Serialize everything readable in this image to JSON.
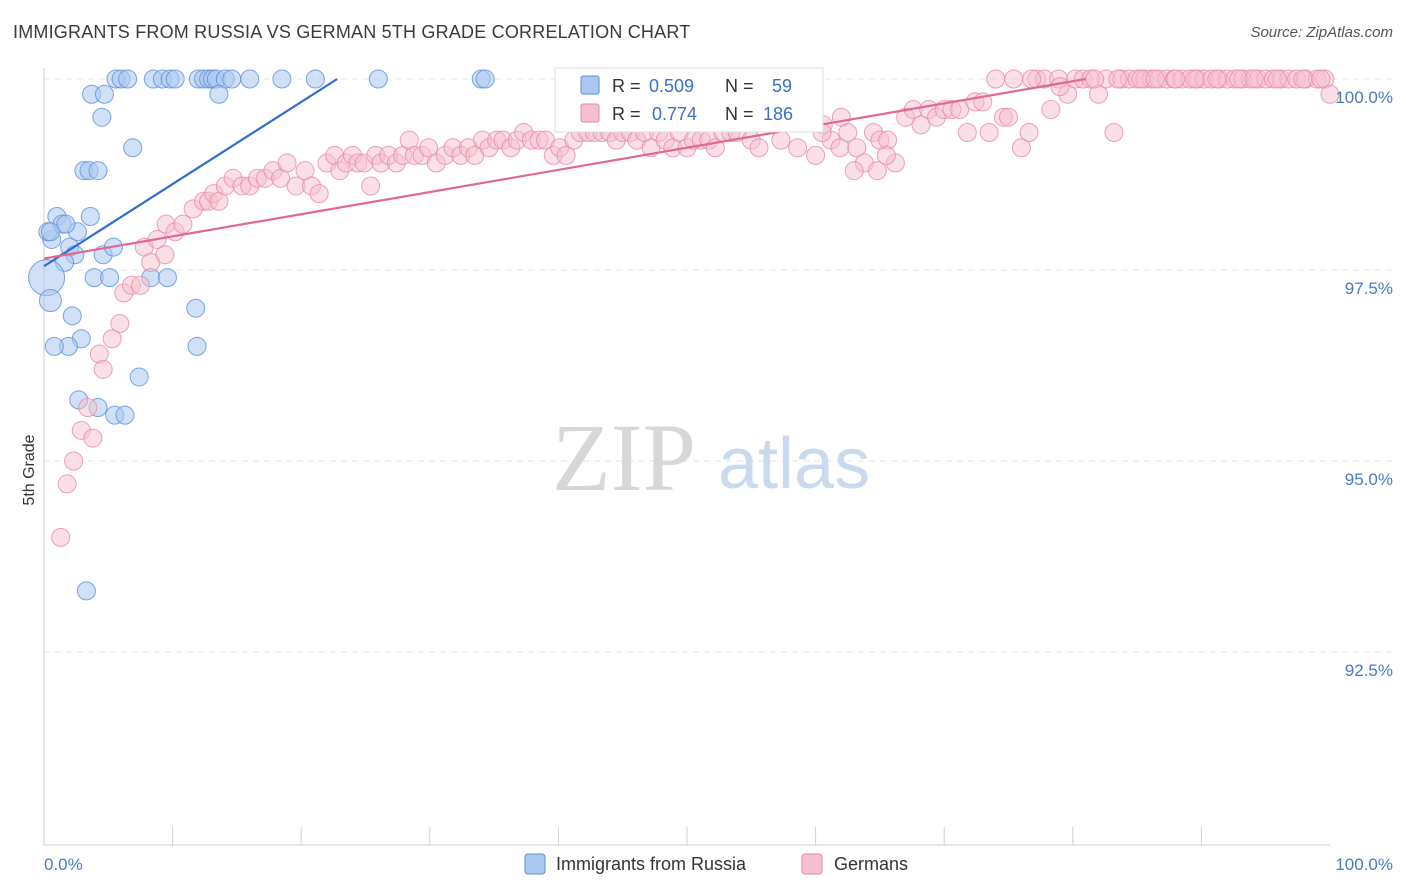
{
  "header": {
    "title": "IMMIGRANTS FROM RUSSIA VS GERMAN 5TH GRADE CORRELATION CHART",
    "source": "Source: ZipAtlas.com"
  },
  "watermark": {
    "zip": "ZIP",
    "atlas": "atlas"
  },
  "colors": {
    "blue": "#5b8fd9",
    "blue_fill": "#aac8f0",
    "blue_line": "#2d6fcf",
    "pink": "#e889a8",
    "pink_fill": "#f6bfd0",
    "pink_line": "#e06891",
    "grid": "#e3e3e3",
    "axis_text": "#4a79c8"
  },
  "chart_data": {
    "type": "scatter",
    "title": "IMMIGRANTS FROM RUSSIA VS GERMAN 5TH GRADE CORRELATION CHART",
    "xlabel": "",
    "ylabel": "5th Grade",
    "xlim": [
      0,
      100
    ],
    "ylim": [
      90.1,
      100.3
    ],
    "x_tick_labels": [
      "0.0%",
      "100.0%"
    ],
    "y_ticks": [
      {
        "value": 100.0,
        "label": "100.0%"
      },
      {
        "value": 97.5,
        "label": "97.5%"
      },
      {
        "value": 95.0,
        "label": "95.0%"
      },
      {
        "value": 92.5,
        "label": "92.5%"
      }
    ],
    "legend": {
      "position": "bottom-center",
      "entries": [
        "Immigrants from Russia",
        "Germans"
      ]
    },
    "stats": [
      {
        "r_label": "R =",
        "r": "0.509",
        "n_label": "N =",
        "n": "59"
      },
      {
        "r_label": "R =",
        "r": "0.774",
        "n_label": "N =",
        "n": "186"
      }
    ],
    "series": [
      {
        "name": "Immigrants from Russia",
        "color": "#5b8fd9",
        "trend": [
          [
            0,
            97.55
          ],
          [
            22.8,
            100.0
          ]
        ],
        "points": [
          [
            5.6,
            100
          ],
          [
            6.0,
            100
          ],
          [
            6.5,
            100
          ],
          [
            8.5,
            100
          ],
          [
            9.2,
            100
          ],
          [
            9.8,
            100
          ],
          [
            10.2,
            100
          ],
          [
            12.0,
            100
          ],
          [
            12.4,
            100
          ],
          [
            12.8,
            100
          ],
          [
            13.1,
            100
          ],
          [
            13.4,
            100
          ],
          [
            14.1,
            100
          ],
          [
            14.6,
            100
          ],
          [
            16.0,
            100
          ],
          [
            18.5,
            100
          ],
          [
            21.1,
            100
          ],
          [
            26.0,
            100
          ],
          [
            34.0,
            100
          ],
          [
            34.3,
            100
          ],
          [
            3.7,
            99.8
          ],
          [
            4.7,
            99.8
          ],
          [
            13.6,
            99.8
          ],
          [
            4.5,
            99.5
          ],
          [
            6.9,
            99.1
          ],
          [
            3.1,
            98.8
          ],
          [
            3.5,
            98.8
          ],
          [
            4.2,
            98.8
          ],
          [
            1.0,
            98.2
          ],
          [
            3.6,
            98.2
          ],
          [
            2.6,
            98.0
          ],
          [
            1.4,
            98.1
          ],
          [
            1.7,
            98.1
          ],
          [
            0.6,
            97.9
          ],
          [
            0.3,
            98.0
          ],
          [
            0.5,
            98.0
          ],
          [
            2.0,
            97.8
          ],
          [
            4.6,
            97.7
          ],
          [
            5.4,
            97.8
          ],
          [
            2.4,
            97.7
          ],
          [
            1.6,
            97.6
          ],
          [
            0.2,
            97.4
          ],
          [
            3.9,
            97.4
          ],
          [
            5.1,
            97.4
          ],
          [
            8.3,
            97.4
          ],
          [
            9.6,
            97.4
          ],
          [
            0.5,
            97.1
          ],
          [
            11.8,
            97.0
          ],
          [
            2.2,
            96.9
          ],
          [
            2.9,
            96.6
          ],
          [
            1.9,
            96.5
          ],
          [
            0.8,
            96.5
          ],
          [
            11.9,
            96.5
          ],
          [
            7.4,
            96.1
          ],
          [
            2.7,
            95.8
          ],
          [
            4.2,
            95.7
          ],
          [
            5.5,
            95.6
          ],
          [
            6.3,
            95.6
          ],
          [
            3.3,
            93.3
          ]
        ],
        "sizes": {
          "0.2,97.4": 18,
          "0.5,97.1": 11
        }
      },
      {
        "name": "Germans",
        "color": "#e889a8",
        "trend": [
          [
            0,
            97.65
          ],
          [
            81.0,
            100.0
          ]
        ],
        "points": [
          [
            1.3,
            94.0
          ],
          [
            1.8,
            94.7
          ],
          [
            2.3,
            95.0
          ],
          [
            2.9,
            95.4
          ],
          [
            3.8,
            95.3
          ],
          [
            3.4,
            95.7
          ],
          [
            4.3,
            96.4
          ],
          [
            4.6,
            96.2
          ],
          [
            5.3,
            96.6
          ],
          [
            5.9,
            96.8
          ],
          [
            6.2,
            97.2
          ],
          [
            6.8,
            97.3
          ],
          [
            7.5,
            97.3
          ],
          [
            7.8,
            97.8
          ],
          [
            8.3,
            97.6
          ],
          [
            8.8,
            97.9
          ],
          [
            9.4,
            97.7
          ],
          [
            9.5,
            98.1
          ],
          [
            10.2,
            98.0
          ],
          [
            10.8,
            98.1
          ],
          [
            11.6,
            98.3
          ],
          [
            12.4,
            98.4
          ],
          [
            12.8,
            98.4
          ],
          [
            13.2,
            98.5
          ],
          [
            13.6,
            98.4
          ],
          [
            14.1,
            98.6
          ],
          [
            14.7,
            98.7
          ],
          [
            15.4,
            98.6
          ],
          [
            16.0,
            98.6
          ],
          [
            16.6,
            98.7
          ],
          [
            17.2,
            98.7
          ],
          [
            17.8,
            98.8
          ],
          [
            18.4,
            98.7
          ],
          [
            18.9,
            98.9
          ],
          [
            19.6,
            98.6
          ],
          [
            20.3,
            98.8
          ],
          [
            20.8,
            98.6
          ],
          [
            21.4,
            98.5
          ],
          [
            22.0,
            98.9
          ],
          [
            22.6,
            99.0
          ],
          [
            23.0,
            98.8
          ],
          [
            23.5,
            98.9
          ],
          [
            24.0,
            99.0
          ],
          [
            24.4,
            98.9
          ],
          [
            24.9,
            98.9
          ],
          [
            25.4,
            98.6
          ],
          [
            25.8,
            99.0
          ],
          [
            26.2,
            98.9
          ],
          [
            26.8,
            99.0
          ],
          [
            27.4,
            98.9
          ],
          [
            27.9,
            99.0
          ],
          [
            28.4,
            99.2
          ],
          [
            28.8,
            99.0
          ],
          [
            29.4,
            99.0
          ],
          [
            29.9,
            99.1
          ],
          [
            30.5,
            98.9
          ],
          [
            31.2,
            99.0
          ],
          [
            31.8,
            99.1
          ],
          [
            32.4,
            99.0
          ],
          [
            33.0,
            99.1
          ],
          [
            33.5,
            99.0
          ],
          [
            34.1,
            99.2
          ],
          [
            34.6,
            99.1
          ],
          [
            35.2,
            99.2
          ],
          [
            35.7,
            99.2
          ],
          [
            36.3,
            99.1
          ],
          [
            36.8,
            99.2
          ],
          [
            37.3,
            99.3
          ],
          [
            37.9,
            99.2
          ],
          [
            38.5,
            99.2
          ],
          [
            39.0,
            99.2
          ],
          [
            39.6,
            99.0
          ],
          [
            40.1,
            99.1
          ],
          [
            40.6,
            99.0
          ],
          [
            41.2,
            99.2
          ],
          [
            41.7,
            99.3
          ],
          [
            42.3,
            99.3
          ],
          [
            42.8,
            99.3
          ],
          [
            43.4,
            99.3
          ],
          [
            44.0,
            99.3
          ],
          [
            44.5,
            99.2
          ],
          [
            45.0,
            99.3
          ],
          [
            45.6,
            99.3
          ],
          [
            46.1,
            99.2
          ],
          [
            46.7,
            99.3
          ],
          [
            47.2,
            99.1
          ],
          [
            47.8,
            99.3
          ],
          [
            48.3,
            99.2
          ],
          [
            48.9,
            99.1
          ],
          [
            49.4,
            99.3
          ],
          [
            50.0,
            99.1
          ],
          [
            50.5,
            99.2
          ],
          [
            51.1,
            99.2
          ],
          [
            51.7,
            99.2
          ],
          [
            52.2,
            99.1
          ],
          [
            52.8,
            99.3
          ],
          [
            53.4,
            99.3
          ],
          [
            53.9,
            99.3
          ],
          [
            54.5,
            99.5
          ],
          [
            55.0,
            99.2
          ],
          [
            55.6,
            99.1
          ],
          [
            56.1,
            99.6
          ],
          [
            56.7,
            99.4
          ],
          [
            57.3,
            99.2
          ],
          [
            58.0,
            99.6
          ],
          [
            58.6,
            99.1
          ],
          [
            59.3,
            99.6
          ],
          [
            60.0,
            99.0
          ],
          [
            60.6,
            99.4
          ],
          [
            61.2,
            99.2
          ],
          [
            61.9,
            99.1
          ],
          [
            62.5,
            99.3
          ],
          [
            63.2,
            99.1
          ],
          [
            63.8,
            98.9
          ],
          [
            64.5,
            99.3
          ],
          [
            65.0,
            99.2
          ],
          [
            65.6,
            99.2
          ],
          [
            66.2,
            98.9
          ],
          [
            67.0,
            99.5
          ],
          [
            67.6,
            99.6
          ],
          [
            68.2,
            99.4
          ],
          [
            68.8,
            99.6
          ],
          [
            69.4,
            99.5
          ],
          [
            70.0,
            99.6
          ],
          [
            70.6,
            99.6
          ],
          [
            71.2,
            99.6
          ],
          [
            71.8,
            99.3
          ],
          [
            72.4,
            99.7
          ],
          [
            73.0,
            99.7
          ],
          [
            74.0,
            100
          ],
          [
            74.6,
            99.5
          ],
          [
            75.4,
            100
          ],
          [
            76.0,
            99.1
          ],
          [
            76.6,
            99.3
          ],
          [
            77.2,
            100
          ],
          [
            77.8,
            100
          ],
          [
            78.3,
            99.6
          ],
          [
            78.9,
            100
          ],
          [
            79.6,
            99.8
          ],
          [
            80.2,
            100
          ],
          [
            80.8,
            100
          ],
          [
            81.4,
            100
          ],
          [
            82.0,
            99.8
          ],
          [
            82.6,
            100
          ],
          [
            83.2,
            99.3
          ],
          [
            83.8,
            100
          ],
          [
            84.4,
            100
          ],
          [
            85.0,
            100
          ],
          [
            85.6,
            100
          ],
          [
            86.1,
            100
          ],
          [
            86.7,
            100
          ],
          [
            87.3,
            100
          ],
          [
            87.9,
            100
          ],
          [
            88.5,
            100
          ],
          [
            89.1,
            100
          ],
          [
            89.7,
            100
          ],
          [
            90.2,
            100
          ],
          [
            90.8,
            100
          ],
          [
            91.4,
            100
          ],
          [
            92.0,
            100
          ],
          [
            92.6,
            100
          ],
          [
            93.2,
            100
          ],
          [
            93.8,
            100
          ],
          [
            94.4,
            100
          ],
          [
            95.0,
            100
          ],
          [
            95.6,
            100
          ],
          [
            96.2,
            100
          ],
          [
            96.8,
            100
          ],
          [
            97.4,
            100
          ],
          [
            98.1,
            100
          ],
          [
            99.0,
            100
          ],
          [
            99.6,
            100
          ],
          [
            100.0,
            99.8
          ],
          [
            63.0,
            98.8
          ],
          [
            64.8,
            98.8
          ],
          [
            65.5,
            99.0
          ],
          [
            73.5,
            99.3
          ],
          [
            75.0,
            99.5
          ],
          [
            76.8,
            100
          ],
          [
            79.0,
            99.9
          ],
          [
            81.7,
            100
          ],
          [
            83.5,
            100
          ],
          [
            85.3,
            100
          ],
          [
            86.4,
            100
          ],
          [
            88.0,
            100
          ],
          [
            89.5,
            100
          ],
          [
            91.2,
            100
          ],
          [
            92.9,
            100
          ],
          [
            94.1,
            100
          ],
          [
            95.9,
            100
          ],
          [
            97.9,
            100
          ],
          [
            99.3,
            100
          ],
          [
            60.5,
            99.3
          ],
          [
            62.0,
            99.5
          ]
        ]
      }
    ]
  }
}
